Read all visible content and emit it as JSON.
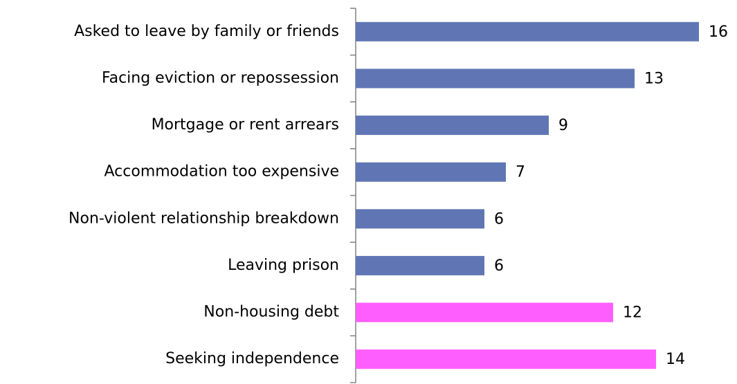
{
  "chart_data": {
    "type": "bar",
    "orientation": "horizontal",
    "categories": [
      "Asked to leave by family or friends",
      "Facing eviction or repossession",
      "Mortgage or rent arrears",
      "Accommodation too expensive",
      "Non-violent relationship breakdown",
      "Leaving prison",
      "Non-housing debt",
      "Seeking independence"
    ],
    "values": [
      16,
      13,
      9,
      7,
      6,
      6,
      12,
      14
    ],
    "colors": [
      "#6076b4",
      "#6076b4",
      "#6076b4",
      "#6076b4",
      "#6076b4",
      "#6076b4",
      "#ff5eff",
      "#ff5eff"
    ]
  }
}
